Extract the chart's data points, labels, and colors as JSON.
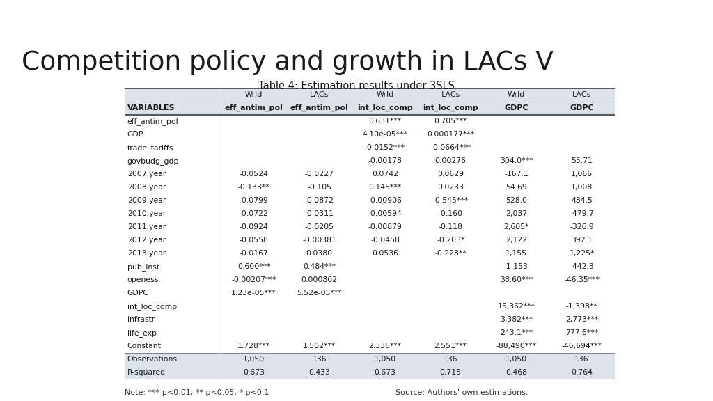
{
  "title": "Competition policy and growth in LACs V",
  "subtitle": "Table 4: Estimation results under 3SLS",
  "note": "Note: *** p<0.01, ** p<0.05, * p<0.1",
  "source": "Source: Authors' own estimations.",
  "col_headers_row1": [
    "",
    "Wrld",
    "LACs",
    "Wrld",
    "LACs",
    "Wrld",
    "LACs"
  ],
  "col_headers_row2": [
    "VARIABLES",
    "eff_antim_pol",
    "eff_antim_pol",
    "int_loc_comp",
    "int_loc_comp",
    "GDPC",
    "GDPC"
  ],
  "rows": [
    [
      "eff_antim_pol",
      "",
      "",
      "0.631***",
      "0.705***",
      "",
      ""
    ],
    [
      "GDP",
      "",
      "",
      "4.10e-05***",
      "0.000177***",
      "",
      ""
    ],
    [
      "trade_tariffs",
      "",
      "",
      "-0.0152***",
      "-0.0664***",
      "",
      ""
    ],
    [
      "govbudg_gdp",
      "",
      "",
      "-0.00178",
      "0.00276",
      "304.0***",
      "55.71"
    ],
    [
      "2007.year",
      "-0.0524",
      "-0.0227",
      "0.0742",
      "0.0629",
      "-167.1",
      "1,066"
    ],
    [
      "2008.year",
      "-0.133**",
      "-0.105",
      "0.145***",
      "0.0233",
      "54.69",
      "1,008"
    ],
    [
      "2009.year",
      "-0.0799",
      "-0.0872",
      "-0.00906",
      "-0.545***",
      "528.0",
      "484.5"
    ],
    [
      "2010.year",
      "-0.0722",
      "-0.0311",
      "-0.00594",
      "-0.160",
      "2,037",
      "-479.7"
    ],
    [
      "2011.year",
      "-0.0924",
      "-0.0205",
      "-0.00879",
      "-0.118",
      "2,605*",
      "-326.9"
    ],
    [
      "2012.year",
      "-0.0558",
      "-0.00381",
      "-0.0458",
      "-0.203*",
      "2,122",
      "392.1"
    ],
    [
      "2013.year",
      "-0.0167",
      "0.0380",
      "0.0536",
      "-0.228**",
      "1,155",
      "1,225*"
    ],
    [
      "pub_inst",
      "0.600***",
      "0.484***",
      "",
      "",
      "-1,153",
      "-442.3"
    ],
    [
      "openess",
      "-0.00207***",
      "0.000802",
      "",
      "",
      "38.60***",
      "-46.35***"
    ],
    [
      "GDPC",
      "1.23e-05***",
      "5.52e-05***",
      "",
      "",
      "",
      ""
    ],
    [
      "int_loc_comp",
      "",
      "",
      "",
      "",
      "15,362***",
      "-1,398**"
    ],
    [
      "infrastr",
      "",
      "",
      "",
      "",
      "3,382***",
      "2,773***"
    ],
    [
      "life_exp",
      "",
      "",
      "",
      "",
      "243.1***",
      "777.6***"
    ],
    [
      "Constant",
      "1.728***",
      "1.502***",
      "2.336***",
      "2.551***",
      "-88,490***",
      "-46,694***"
    ]
  ],
  "footer_rows": [
    [
      "Observations",
      "1,050",
      "136",
      "1,050",
      "136",
      "1,050",
      "136"
    ],
    [
      "R-squared",
      "0.673",
      "0.433",
      "0.673",
      "0.715",
      "0.468",
      "0.764"
    ]
  ],
  "bg_color": "#ffffff",
  "header_bg": "#dce3eb",
  "table_bg": "#ffffff",
  "stripe_color": "#f5f7fa",
  "deco_bar1_color": "#3d4a5c",
  "deco_bar2_color": "#3a7a7a",
  "deco_bar3_color": "#c8dada",
  "deco_bar4_color": "#a8c8c8"
}
